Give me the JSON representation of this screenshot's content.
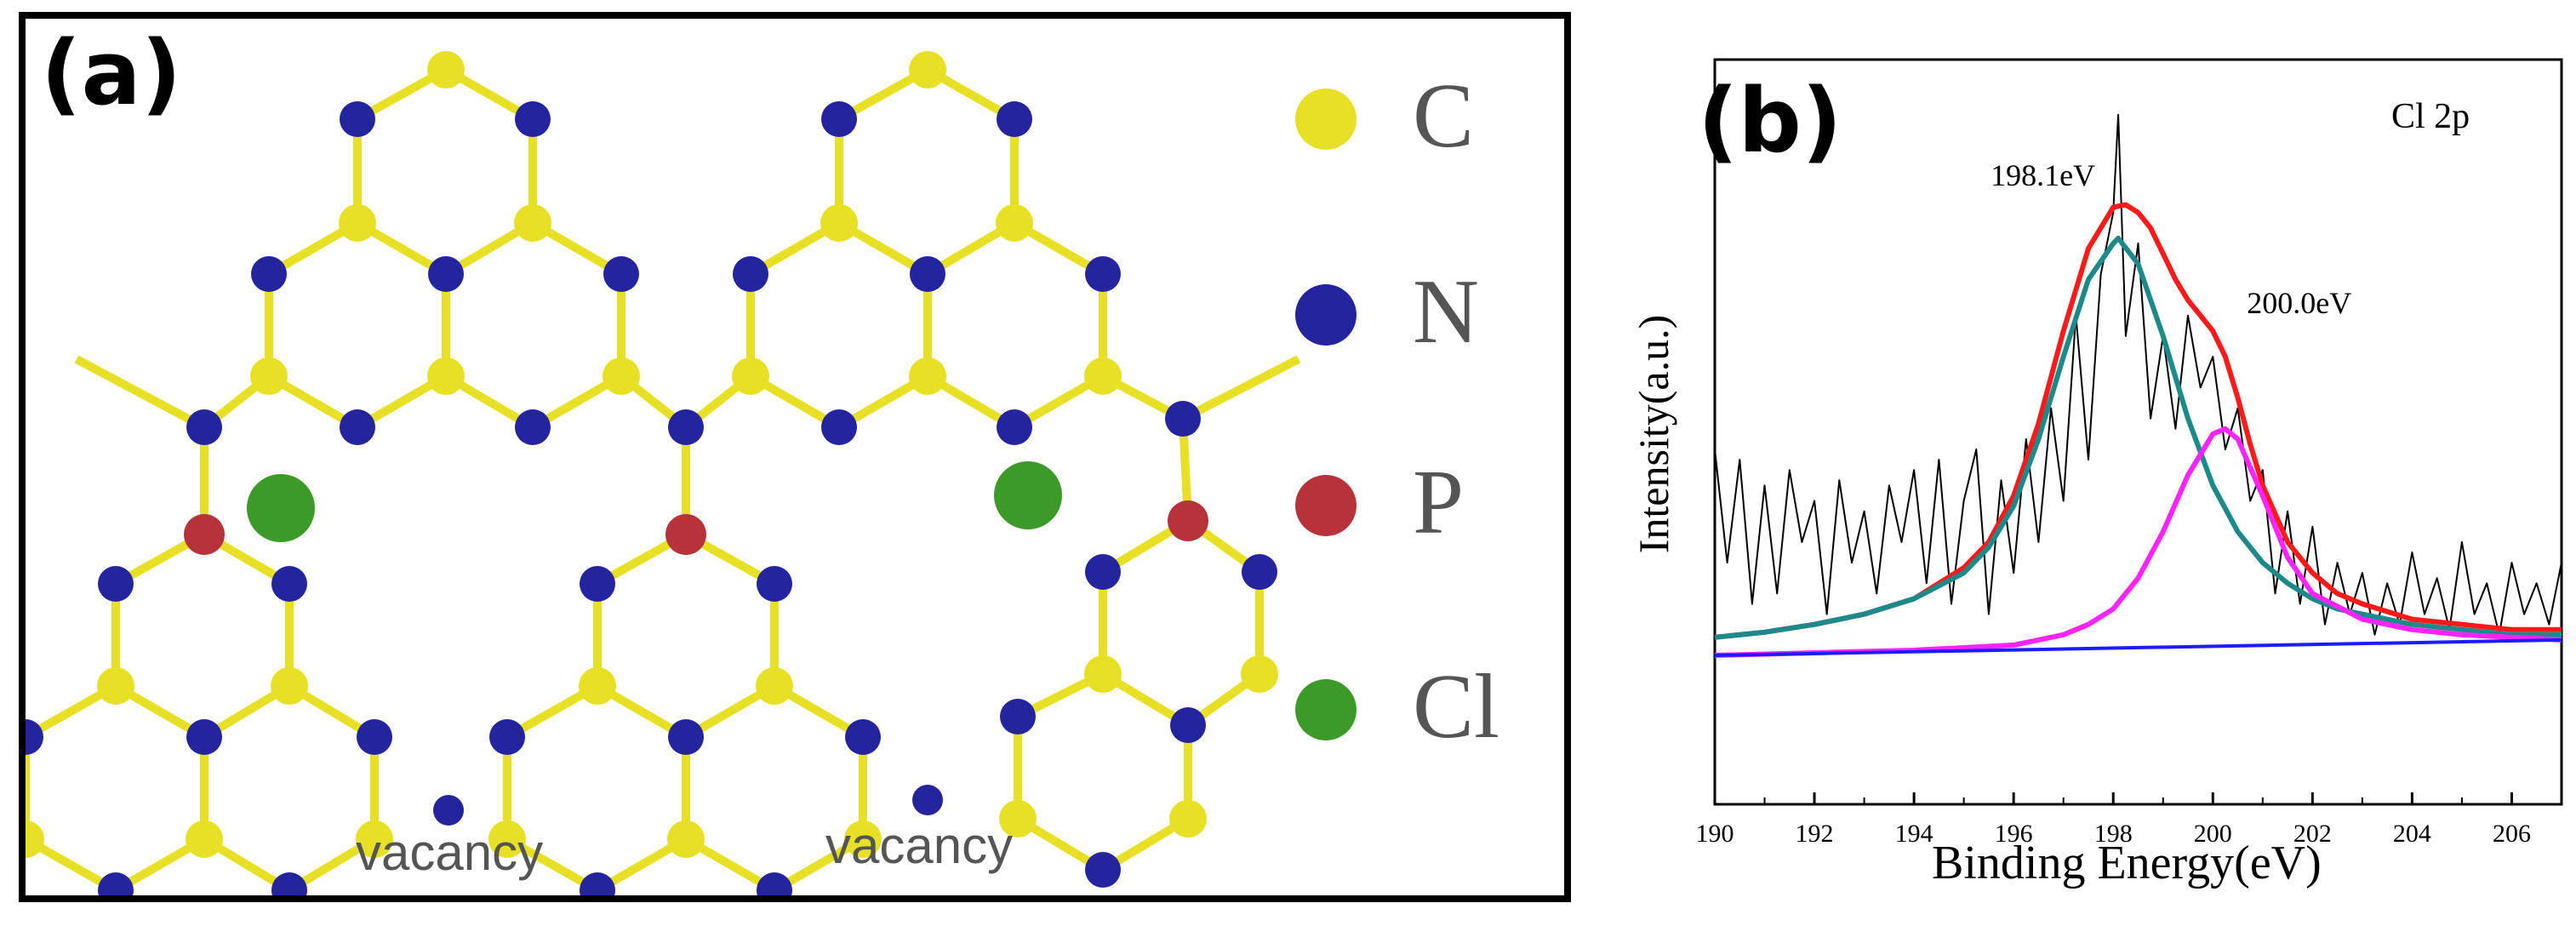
{
  "panel_a": {
    "label": "(a)",
    "legend": [
      {
        "element": "C",
        "color": "#e8e024"
      },
      {
        "element": "N",
        "color": "#24249e"
      },
      {
        "element": "P",
        "color": "#b8323c"
      },
      {
        "element": "Cl",
        "color": "#3c9a28"
      }
    ],
    "vacancy_labels": [
      "vacancy",
      "vacancy"
    ],
    "atom_colors": {
      "C": "#e8e024",
      "N": "#24249e",
      "P": "#b8323c",
      "Cl": "#3c9a28",
      "bond": "#e8e024"
    }
  },
  "chart_data": {
    "type": "line",
    "panel_label": "(b)",
    "title": "Cl 2p",
    "xlabel": "Binding Energy(eV)",
    "ylabel": "Intensity(a.u.)",
    "xlim": [
      190,
      207
    ],
    "ylim": [
      0,
      1
    ],
    "x_ticks": [
      190,
      192,
      194,
      196,
      198,
      200,
      202,
      204,
      206
    ],
    "y_ticks_shown": false,
    "grid": false,
    "annotations": [
      {
        "text": "198.1eV",
        "x": 198.1
      },
      {
        "text": "200.0eV",
        "x": 200.0
      }
    ],
    "series": [
      {
        "color": "#000000",
        "x": [
          190,
          190.25,
          190.5,
          190.75,
          191,
          191.25,
          191.5,
          191.75,
          192,
          192.25,
          192.5,
          192.75,
          193,
          193.25,
          193.5,
          193.75,
          194,
          194.25,
          194.5,
          194.75,
          195,
          195.25,
          195.5,
          195.75,
          196,
          196.25,
          196.5,
          196.75,
          197,
          197.25,
          197.5,
          197.75,
          198,
          198.1,
          198.25,
          198.5,
          198.75,
          199,
          199.25,
          199.5,
          199.75,
          200,
          200.25,
          200.5,
          200.75,
          201,
          201.25,
          201.5,
          201.75,
          202,
          202.25,
          202.5,
          202.75,
          203,
          203.25,
          203.5,
          203.75,
          204,
          204.25,
          204.5,
          204.75,
          205,
          205.25,
          205.5,
          205.75,
          206,
          206.25,
          206.5,
          206.75,
          207
        ],
        "values": [
          0.4,
          0.18,
          0.38,
          0.1,
          0.33,
          0.12,
          0.36,
          0.22,
          0.3,
          0.08,
          0.34,
          0.18,
          0.28,
          0.12,
          0.33,
          0.22,
          0.36,
          0.14,
          0.38,
          0.1,
          0.3,
          0.4,
          0.08,
          0.34,
          0.16,
          0.42,
          0.22,
          0.48,
          0.3,
          0.66,
          0.38,
          0.74,
          0.86,
          1.05,
          0.62,
          0.8,
          0.46,
          0.62,
          0.44,
          0.66,
          0.52,
          0.58,
          0.4,
          0.48,
          0.3,
          0.36,
          0.12,
          0.28,
          0.1,
          0.25,
          0.06,
          0.18,
          0.08,
          0.16,
          0.04,
          0.14,
          0.06,
          0.2,
          0.08,
          0.15,
          0.05,
          0.22,
          0.08,
          0.14,
          0.04,
          0.18,
          0.08,
          0.14,
          0.06,
          0.18
        ]
      },
      {
        "color": "#ff1a1a",
        "x": [
          190,
          191,
          192,
          193,
          194,
          195,
          195.5,
          196,
          196.5,
          197,
          197.5,
          198,
          198.25,
          198.5,
          198.75,
          199,
          199.25,
          199.5,
          199.75,
          200,
          200.25,
          200.5,
          200.75,
          201,
          201.5,
          202,
          202.5,
          203,
          204,
          205,
          206,
          207
        ],
        "values": [
          0.035,
          0.045,
          0.06,
          0.08,
          0.11,
          0.17,
          0.22,
          0.31,
          0.45,
          0.63,
          0.79,
          0.87,
          0.875,
          0.86,
          0.83,
          0.78,
          0.73,
          0.69,
          0.66,
          0.63,
          0.58,
          0.5,
          0.41,
          0.33,
          0.22,
          0.16,
          0.12,
          0.1,
          0.07,
          0.06,
          0.05,
          0.05
        ]
      },
      {
        "color": "#1c8a8a",
        "x": [
          190,
          191,
          192,
          193,
          194,
          195,
          195.5,
          196,
          196.5,
          197,
          197.5,
          198,
          198.1,
          198.5,
          199,
          199.5,
          200,
          200.5,
          201,
          201.5,
          202,
          202.5,
          203,
          204,
          205,
          206,
          207
        ],
        "values": [
          0.035,
          0.045,
          0.06,
          0.08,
          0.11,
          0.16,
          0.21,
          0.29,
          0.42,
          0.58,
          0.73,
          0.8,
          0.81,
          0.76,
          0.62,
          0.46,
          0.33,
          0.24,
          0.18,
          0.14,
          0.11,
          0.09,
          0.08,
          0.06,
          0.05,
          0.04,
          0.04
        ]
      },
      {
        "color": "#ff24ff",
        "x": [
          190,
          192,
          194,
          196,
          197,
          197.5,
          198,
          198.5,
          199,
          199.5,
          200,
          200.25,
          200.5,
          201,
          201.5,
          202,
          203,
          204,
          205,
          206,
          207
        ],
        "values": [
          0.0,
          0.005,
          0.01,
          0.02,
          0.04,
          0.06,
          0.09,
          0.15,
          0.24,
          0.35,
          0.43,
          0.44,
          0.42,
          0.31,
          0.19,
          0.12,
          0.07,
          0.05,
          0.04,
          0.035,
          0.03
        ]
      },
      {
        "color": "#1c1cff",
        "x": [
          190,
          207
        ],
        "values": [
          0.0,
          0.03
        ]
      }
    ]
  }
}
